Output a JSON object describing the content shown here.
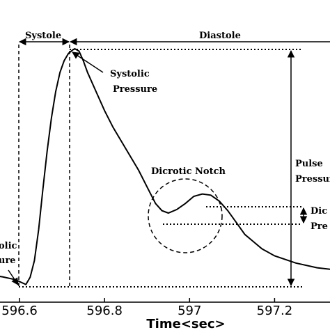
{
  "chart_data": {
    "type": "line",
    "xlabel": "Time<sec>",
    "ylabel": "",
    "xlim": [
      596.5,
      597.35
    ],
    "ylim": [
      0,
      1
    ],
    "x_ticks": [
      596.6,
      596.8,
      597,
      597.2
    ],
    "x_tick_labels": [
      "596.6",
      "596.8",
      "597",
      "597.2"
    ],
    "grid": false,
    "series": [
      {
        "name": "",
        "x": [
          596.5,
          596.53,
          596.56,
          596.59,
          596.615,
          596.625,
          596.635,
          596.645,
          596.655,
          596.665,
          596.675,
          596.685,
          596.695,
          596.705,
          596.715,
          596.725,
          596.73,
          596.74,
          596.75,
          596.76,
          596.78,
          596.8,
          596.82,
          596.84,
          596.86,
          596.88,
          596.9,
          596.92,
          596.935,
          596.95,
          596.97,
          596.99,
          597.01,
          597.03,
          597.05,
          597.07,
          597.09,
          597.11,
          597.13,
          597.15,
          597.17,
          597.2,
          597.25,
          597.3,
          597.35
        ],
        "y": [
          0.04,
          0.05,
          0.042,
          0.03,
          0.01,
          0.04,
          0.11,
          0.24,
          0.41,
          0.57,
          0.71,
          0.82,
          0.9,
          0.95,
          0.98,
          0.995,
          1.0,
          0.99,
          0.95,
          0.9,
          0.82,
          0.74,
          0.67,
          0.61,
          0.55,
          0.49,
          0.42,
          0.35,
          0.32,
          0.31,
          0.325,
          0.35,
          0.38,
          0.39,
          0.385,
          0.36,
          0.32,
          0.27,
          0.22,
          0.19,
          0.16,
          0.13,
          0.1,
          0.08,
          0.07
        ]
      }
    ],
    "annotations": [
      {
        "text": "Systole"
      },
      {
        "text": "Diastole"
      },
      {
        "text": "Systolic"
      },
      {
        "text": "Pressure"
      },
      {
        "text": "Dicrotic Notch"
      },
      {
        "text": "Pulse"
      },
      {
        "text": "Pressure"
      },
      {
        "text": "Dic"
      },
      {
        "text": "Pre"
      },
      {
        "text": "olic"
      },
      {
        "text": "ure"
      }
    ]
  }
}
